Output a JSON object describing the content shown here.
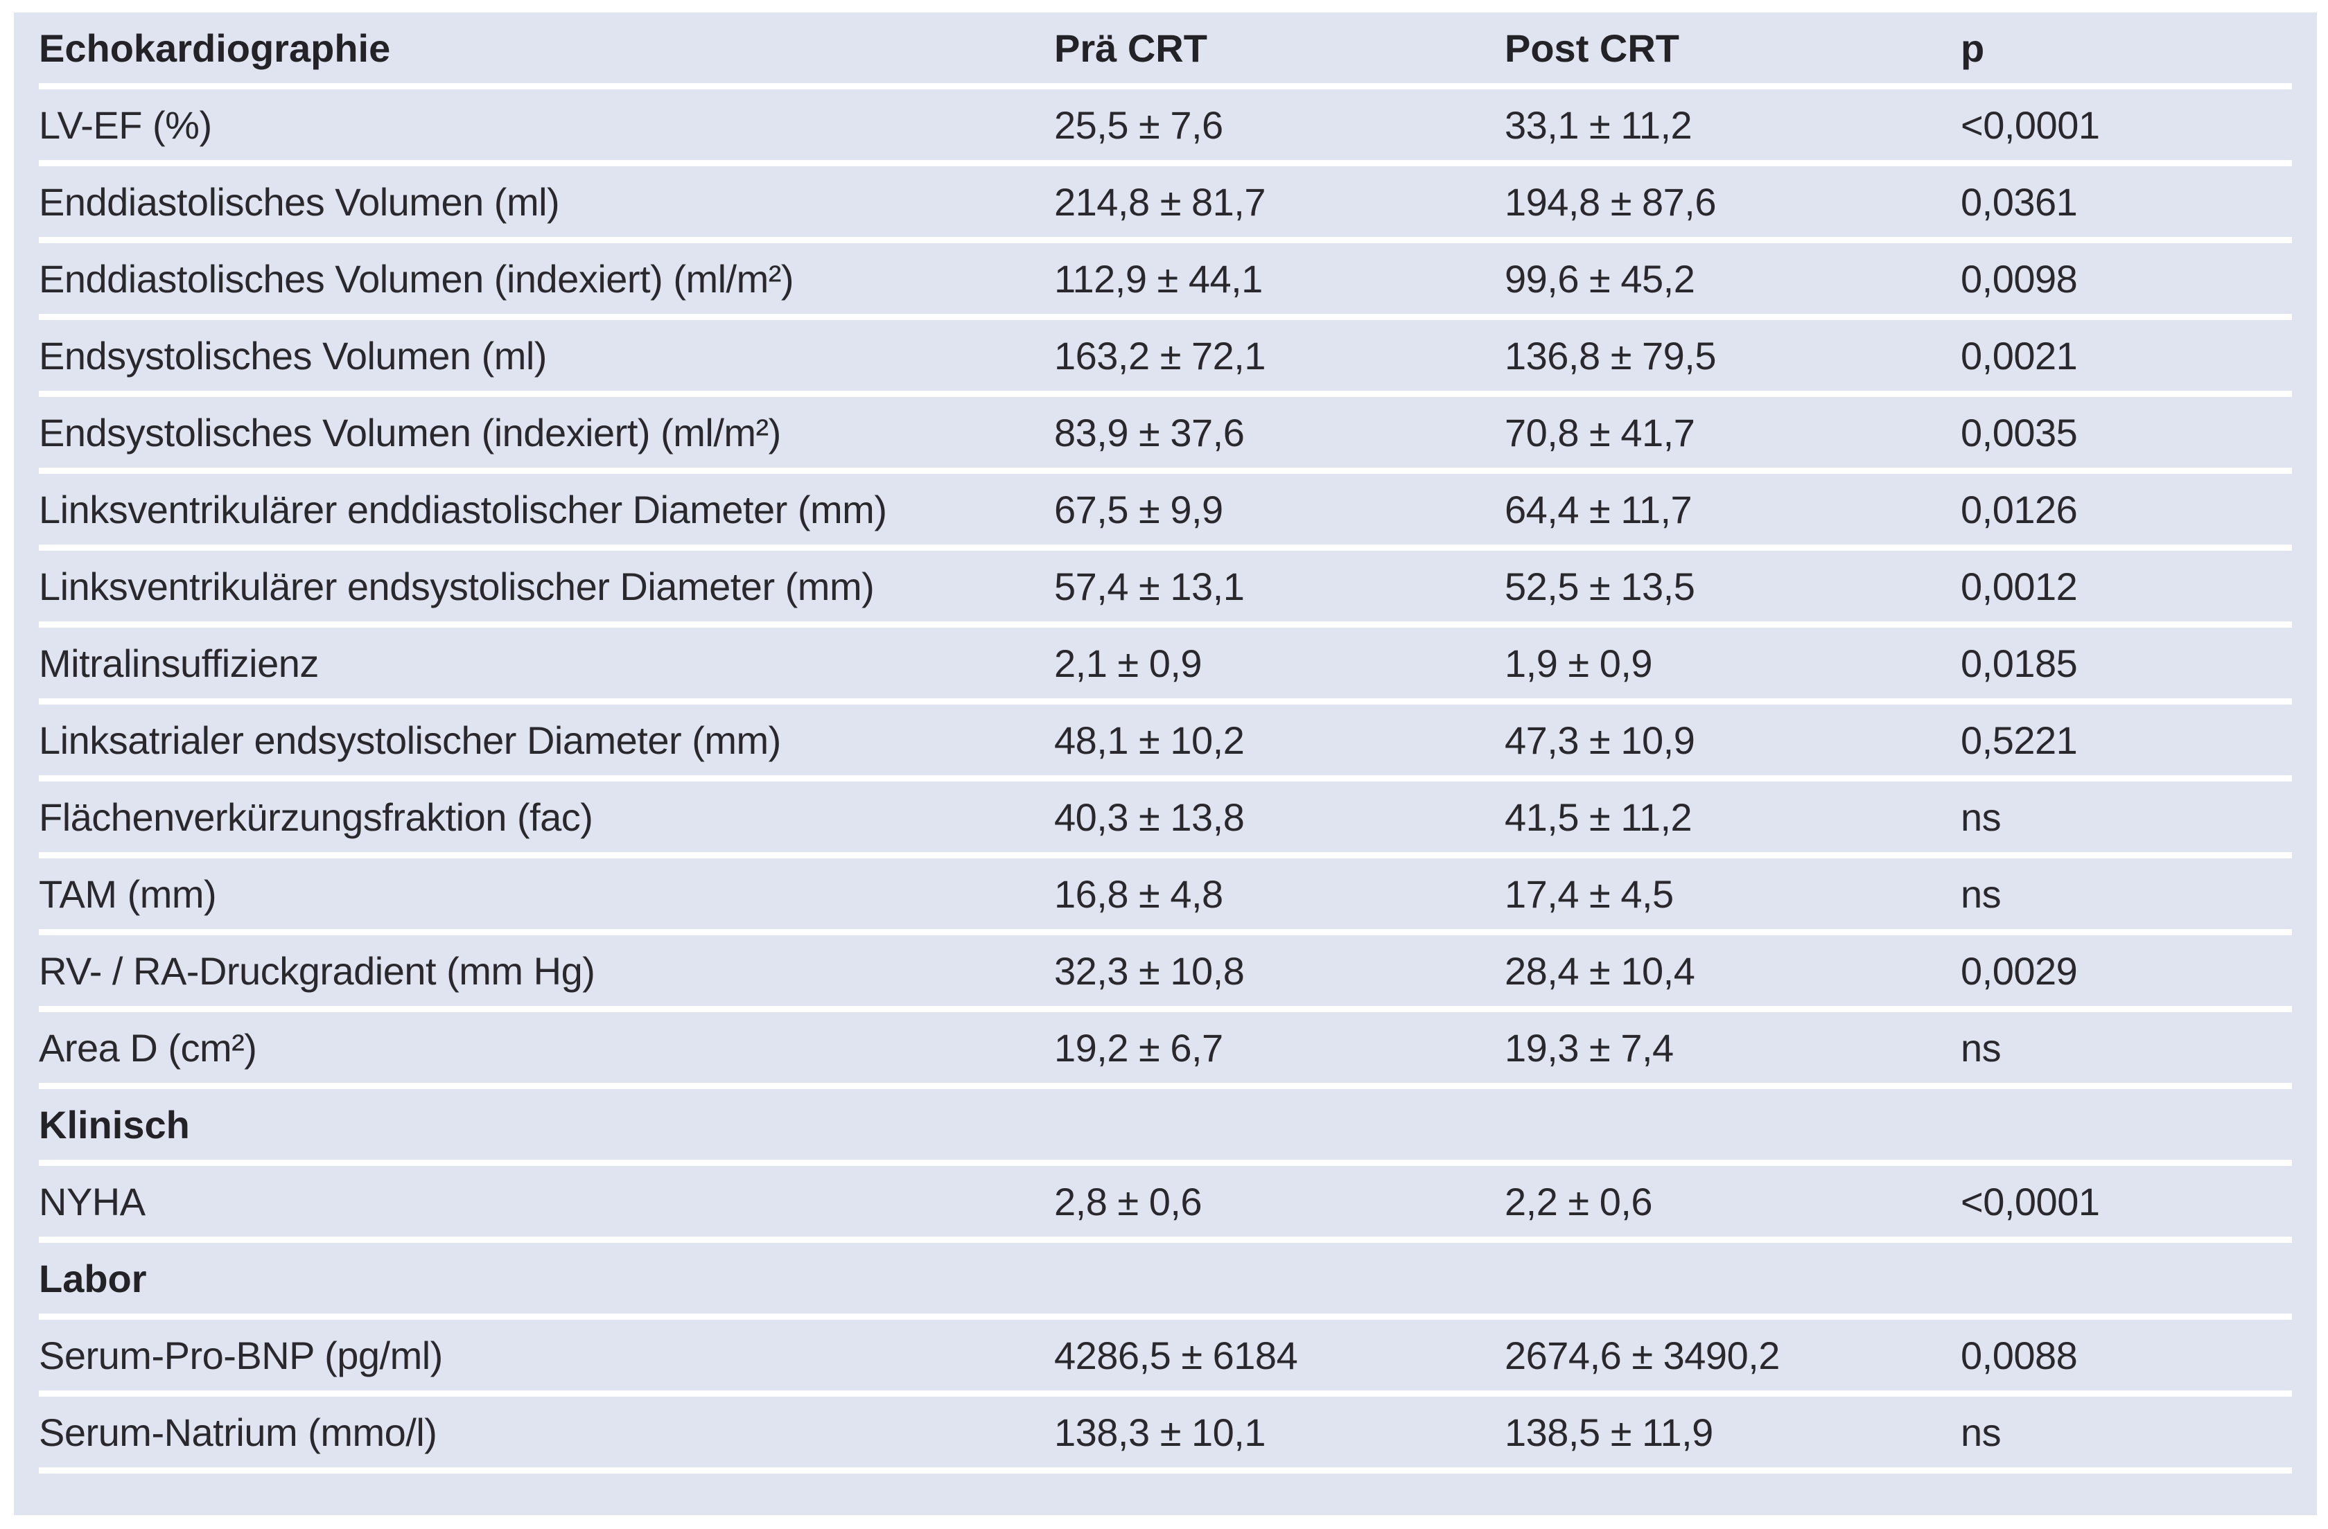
{
  "colors": {
    "page_background": "#ffffff",
    "table_background": "#e0e3f0",
    "separator": "#ffffff",
    "text": "#29292d"
  },
  "table": {
    "columns": {
      "c1": "Echokardiographie",
      "c2": "Prä CRT",
      "c3": "Post CRT",
      "c4": "p"
    },
    "rows": [
      {
        "type": "data",
        "label": "LV-EF (%)",
        "pre": "25,5 ± 7,6",
        "post": "33,1 ± 11,2",
        "p": "<0,0001"
      },
      {
        "type": "data",
        "label": "Enddiastolisches Volumen (ml)",
        "pre": "214,8 ± 81,7",
        "post": "194,8 ± 87,6",
        "p": "0,0361"
      },
      {
        "type": "data",
        "label": "Enddiastolisches Volumen (indexiert) (ml/m²)",
        "pre": "112,9 ± 44,1",
        "post": "99,6 ± 45,2",
        "p": "0,0098"
      },
      {
        "type": "data",
        "label": "Endsystolisches Volumen (ml)",
        "pre": "163,2 ± 72,1",
        "post": "136,8 ± 79,5",
        "p": "0,0021"
      },
      {
        "type": "data",
        "label": "Endsystolisches Volumen (indexiert) (ml/m²)",
        "pre": "83,9 ± 37,6",
        "post": "70,8 ± 41,7",
        "p": "0,0035"
      },
      {
        "type": "data",
        "label": "Linksventrikulärer enddiastolischer Diameter (mm)",
        "pre": "67,5 ± 9,9",
        "post": "64,4 ± 11,7",
        "p": "0,0126"
      },
      {
        "type": "data",
        "label": "Linksventrikulärer endsystolischer Diameter (mm)",
        "pre": "57,4 ± 13,1",
        "post": "52,5 ± 13,5",
        "p": "0,0012"
      },
      {
        "type": "data",
        "label": "Mitralinsuffizienz",
        "pre": "2,1 ± 0,9",
        "post": "1,9 ± 0,9",
        "p": "0,0185"
      },
      {
        "type": "data",
        "label": "Linksatrialer endsystolischer Diameter (mm)",
        "pre": "48,1 ± 10,2",
        "post": "47,3 ± 10,9",
        "p": "0,5221"
      },
      {
        "type": "data",
        "label": "Flächenverkürzungsfraktion (fac)",
        "pre": "40,3 ± 13,8",
        "post": "41,5 ± 11,2",
        "p": "ns"
      },
      {
        "type": "data",
        "label": "TAM (mm)",
        "pre": "16,8 ± 4,8",
        "post": "17,4 ± 4,5",
        "p": "ns"
      },
      {
        "type": "data",
        "label": "RV- / RA-Druckgradient (mm Hg)",
        "pre": "32,3 ± 10,8",
        "post": "28,4 ± 10,4",
        "p": "0,0029"
      },
      {
        "type": "data",
        "label": "Area D (cm²)",
        "pre": "19,2 ± 6,7",
        "post": "19,3 ± 7,4",
        "p": "ns"
      },
      {
        "type": "section",
        "label": "Klinisch",
        "pre": "",
        "post": "",
        "p": ""
      },
      {
        "type": "data",
        "label": "NYHA",
        "pre": "2,8 ± 0,6",
        "post": "2,2 ± 0,6",
        "p": "<0,0001"
      },
      {
        "type": "section",
        "label": "Labor",
        "pre": "",
        "post": "",
        "p": ""
      },
      {
        "type": "data",
        "label": "Serum-Pro-BNP (pg/ml)",
        "pre": "4286,5 ± 6184",
        "post": "2674,6 ± 3490,2",
        "p": "0,0088"
      },
      {
        "type": "data",
        "label": "Serum-Natrium (mmo/l)",
        "pre": "138,3 ± 10,1",
        "post": "138,5 ± 11,9",
        "p": "ns"
      }
    ]
  }
}
